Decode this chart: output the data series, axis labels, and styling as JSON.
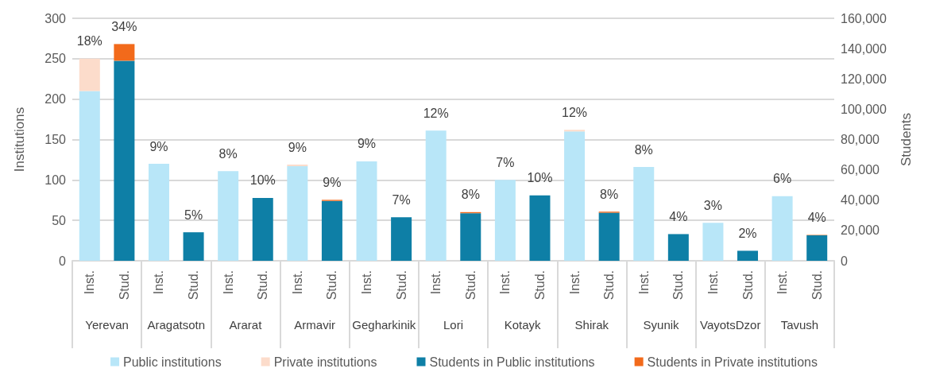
{
  "chart_data": {
    "type": "bar",
    "stacked": true,
    "ylabel": "Institutions",
    "y2label": "Students",
    "categories": [
      "Inst.",
      "Stud.",
      "Inst.",
      "Stud.",
      "Inst.",
      "Stud.",
      "Inst.",
      "Stud.",
      "Inst.",
      "Stud.",
      "Inst.",
      "Stud.",
      "Inst.",
      "Stud.",
      "Inst.",
      "Stud.",
      "Inst.",
      "Stud.",
      "Inst.",
      "Stud.",
      "Inst.",
      "Stud."
    ],
    "annotations": [
      "Yerevan",
      "Aragatsotn",
      "Ararat",
      "Armavir",
      "Gegharkinik",
      "Lori",
      "Kotayk",
      "Shirak",
      "Syunik",
      "VayotsDzor",
      "Tavush",
      {
        "text": "18%"
      },
      {
        "text": "34%"
      },
      {
        "text": "9%"
      },
      {
        "text": "5%"
      },
      {
        "text": "8%"
      },
      {
        "text": "10%"
      },
      {
        "text": "9%"
      },
      {
        "text": "9%"
      },
      {
        "text": "9%"
      },
      {
        "text": "7%"
      },
      {
        "text": "12%"
      },
      {
        "text": "8%"
      },
      {
        "text": "7%"
      },
      {
        "text": "10%"
      },
      {
        "text": "12%"
      },
      {
        "text": "8%"
      },
      {
        "text": "8%"
      },
      {
        "text": "4%"
      },
      {
        "text": "3%"
      },
      {
        "text": "2%"
      },
      {
        "text": "6%"
      },
      {
        "text": "4%"
      }
    ],
    "ylim": [
      0,
      300
    ],
    "yticks": [
      0,
      50,
      100,
      150,
      200,
      250,
      300
    ],
    "y2lim": [
      0,
      160000
    ],
    "y2ticks": [
      {
        "value": 0,
        "label": "0"
      },
      {
        "value": 20000,
        "label": "20,000"
      },
      {
        "value": 40000,
        "label": "40,000"
      },
      {
        "value": 60000,
        "label": "60,000"
      },
      {
        "value": 80000,
        "label": "80,000"
      },
      {
        "value": 100000,
        "label": "100,000"
      },
      {
        "value": 120000,
        "label": "120,000"
      },
      {
        "value": 140000,
        "label": "140,000"
      },
      {
        "value": 160000,
        "label": "160,000"
      }
    ],
    "grid": "y",
    "legend": "bottom",
    "series": [
      {
        "name": "Public institutions",
        "color": "#b8e6f8",
        "values": [
          210,
          null,
          120,
          null,
          111,
          null,
          117,
          null,
          123,
          null,
          161,
          null,
          100,
          null,
          160,
          null,
          116,
          null,
          47,
          null,
          80,
          null
        ]
      },
      {
        "name": "Private institutions",
        "color": "#fcdccb",
        "values": [
          40,
          null,
          0,
          null,
          0,
          null,
          2,
          null,
          0,
          null,
          0,
          null,
          0,
          null,
          2,
          null,
          0,
          null,
          0,
          null,
          0,
          null
        ]
      },
      {
        "name": "Students in Public institutions",
        "color": "#0e7fa6",
        "axis": "y2",
        "values": [
          null,
          132000,
          null,
          18800,
          null,
          41500,
          null,
          39500,
          null,
          28700,
          null,
          31400,
          null,
          43200,
          null,
          31700,
          null,
          17600,
          null,
          6600,
          null,
          16800
        ]
      },
      {
        "name": "Students in Private institutions",
        "color": "#f26a1b",
        "axis": "y2",
        "values": [
          null,
          11000,
          null,
          0,
          null,
          0,
          null,
          700,
          null,
          0,
          null,
          700,
          null,
          0,
          null,
          700,
          null,
          0,
          null,
          0,
          null,
          300
        ]
      }
    ]
  }
}
